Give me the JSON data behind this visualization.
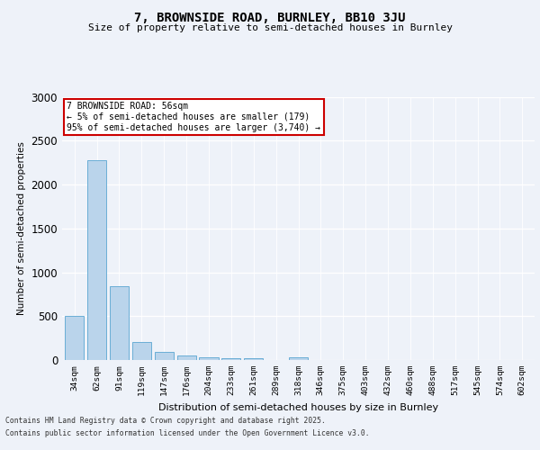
{
  "title1": "7, BROWNSIDE ROAD, BURNLEY, BB10 3JU",
  "title2": "Size of property relative to semi-detached houses in Burnley",
  "xlabel": "Distribution of semi-detached houses by size in Burnley",
  "ylabel": "Number of semi-detached properties",
  "categories": [
    "34sqm",
    "62sqm",
    "91sqm",
    "119sqm",
    "147sqm",
    "176sqm",
    "204sqm",
    "233sqm",
    "261sqm",
    "289sqm",
    "318sqm",
    "346sqm",
    "375sqm",
    "403sqm",
    "432sqm",
    "460sqm",
    "488sqm",
    "517sqm",
    "545sqm",
    "574sqm",
    "602sqm"
  ],
  "values": [
    500,
    2280,
    840,
    210,
    95,
    55,
    35,
    25,
    25,
    0,
    30,
    0,
    0,
    0,
    0,
    0,
    0,
    0,
    0,
    0,
    0
  ],
  "bar_color": "#bad4eb",
  "bar_edge_color": "#6aaed6",
  "annotation_title": "7 BROWNSIDE ROAD: 56sqm",
  "annotation_line1": "← 5% of semi-detached houses are smaller (179)",
  "annotation_line2": "95% of semi-detached houses are larger (3,740) →",
  "annotation_box_color": "#ffffff",
  "annotation_box_edge": "#cc0000",
  "ylim": [
    0,
    3000
  ],
  "yticks": [
    0,
    500,
    1000,
    1500,
    2000,
    2500,
    3000
  ],
  "footer1": "Contains HM Land Registry data © Crown copyright and database right 2025.",
  "footer2": "Contains public sector information licensed under the Open Government Licence v3.0.",
  "bg_color": "#eef2f9"
}
